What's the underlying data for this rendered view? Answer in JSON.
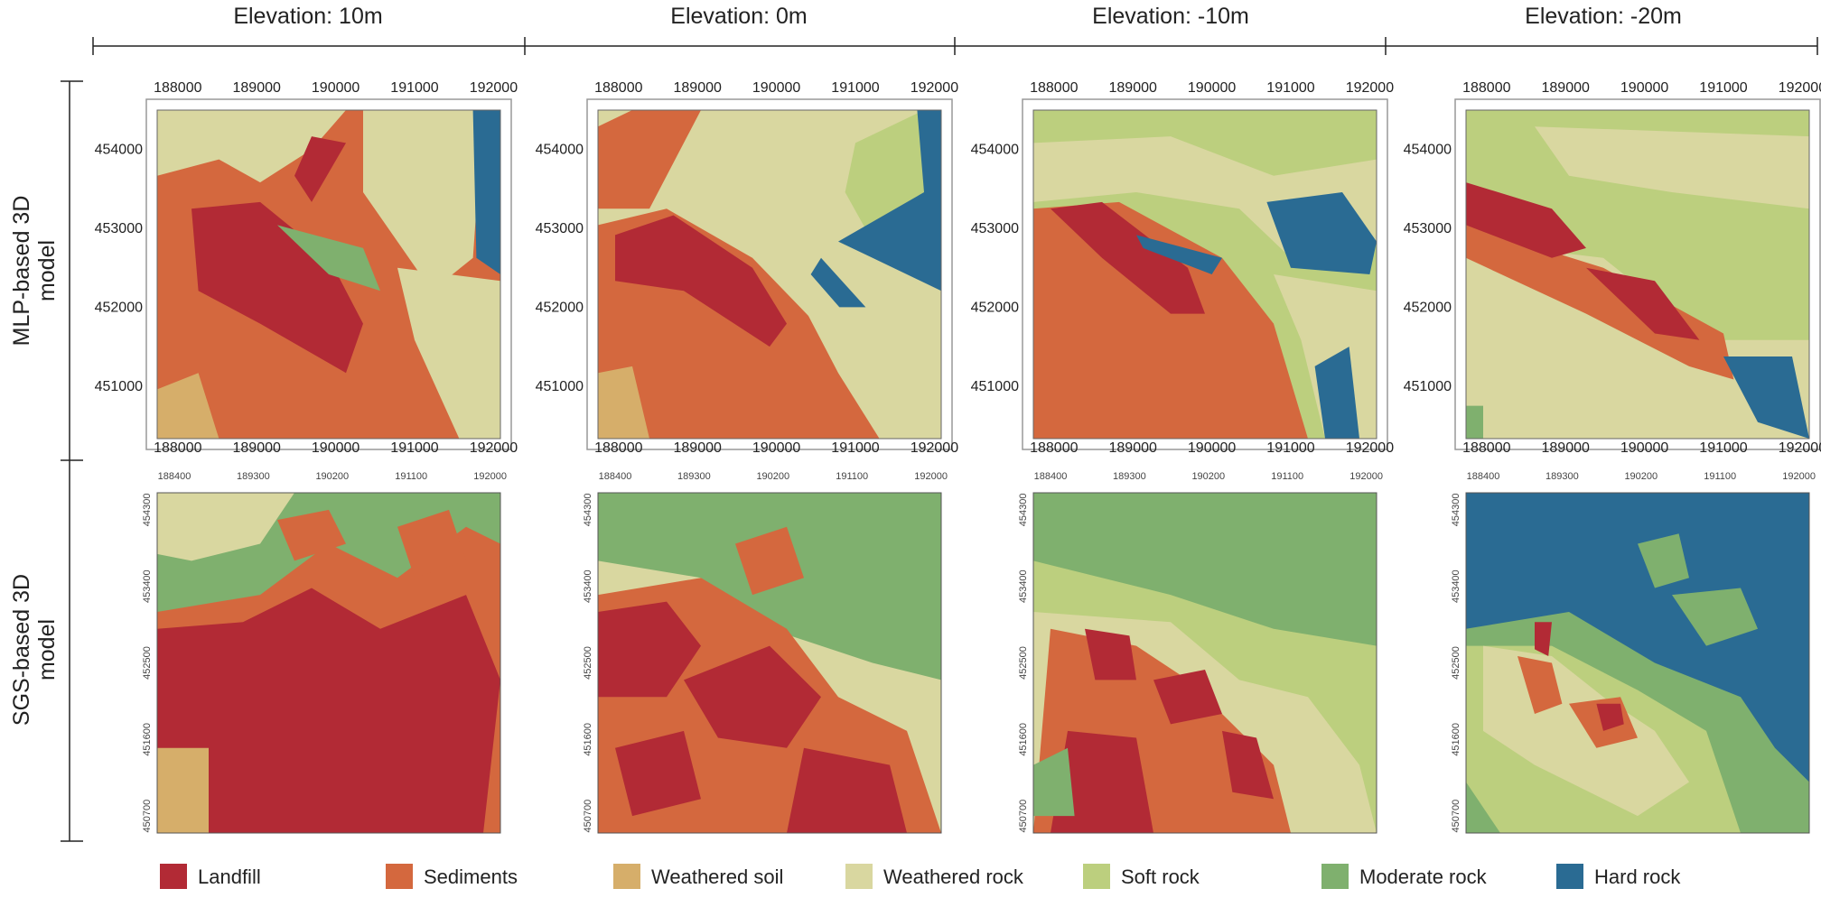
{
  "columns": [
    "Elevation: 10m",
    "Elevation: 0m",
    "Elevation: -10m",
    "Elevation: -20m"
  ],
  "rows": [
    [
      "MLP-based 3D",
      "model"
    ],
    [
      "SGS-based 3D",
      "model"
    ]
  ],
  "mlp_axes": {
    "x_ticks": [
      "188000",
      "189000",
      "190000",
      "191000",
      "192000"
    ],
    "y_ticks": [
      "454000",
      "453000",
      "452000",
      "451000"
    ]
  },
  "sgs_axes": {
    "x_ticks": [
      "188400",
      "189300",
      "190200",
      "191100",
      "192000"
    ],
    "y_ticks": [
      "454300",
      "453400",
      "452500",
      "451600",
      "450700"
    ]
  },
  "legend": [
    {
      "label": "Landfill",
      "color": "#b22a35"
    },
    {
      "label": "Sediments",
      "color": "#d4683e"
    },
    {
      "label": "Weathered soil",
      "color": "#d6ae6a"
    },
    {
      "label": "Weathered rock",
      "color": "#d9d7a0"
    },
    {
      "label": "Soft rock",
      "color": "#bccf7e"
    },
    {
      "label": "Moderate rock",
      "color": "#7fb06e"
    },
    {
      "label": "Hard rock",
      "color": "#2a6b93"
    }
  ]
}
